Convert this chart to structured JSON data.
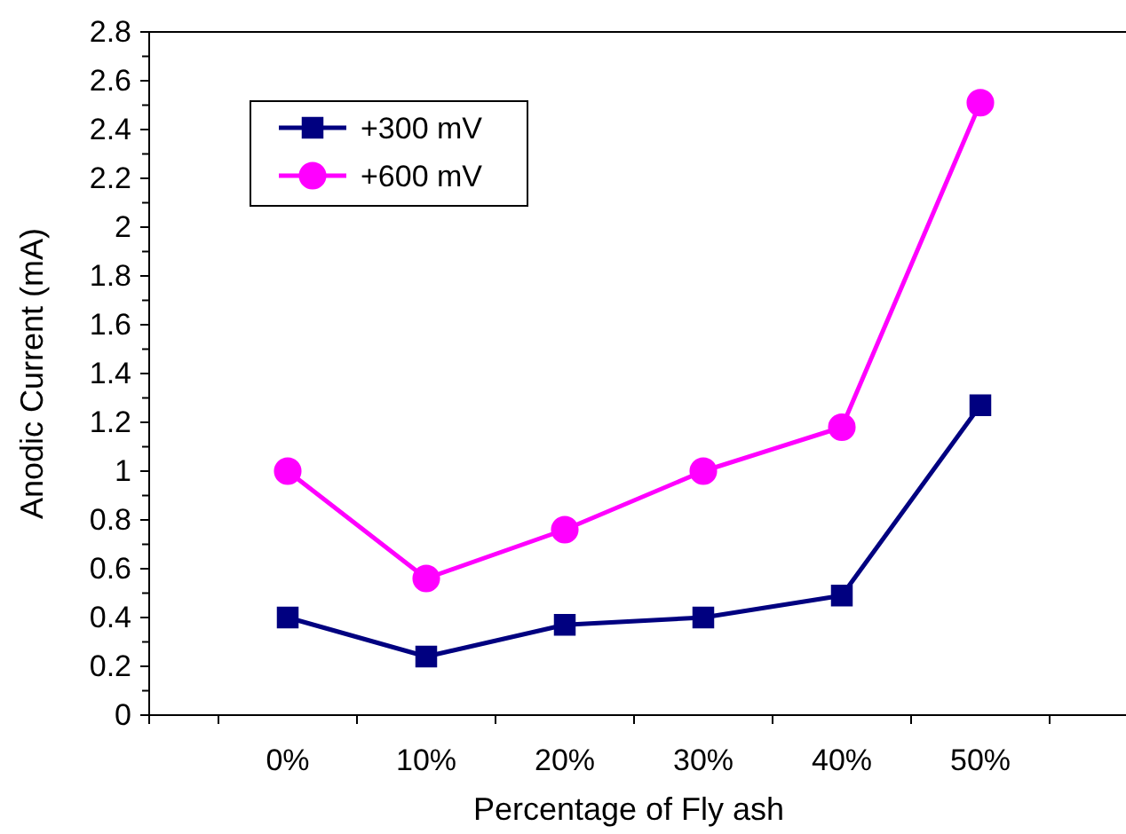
{
  "chart_data": {
    "type": "line",
    "xlabel": "Percentage of Fly ash",
    "ylabel": "Anodic Current (mA)",
    "categories": [
      null,
      "0%",
      "10%",
      "20%",
      "30%",
      "40%",
      "50%",
      null
    ],
    "series": [
      {
        "name": "+300 mV",
        "color": "#000080",
        "marker": "square",
        "values": [
          null,
          0.4,
          0.24,
          0.37,
          0.4,
          0.49,
          1.27,
          null
        ]
      },
      {
        "name": "+600 mV",
        "color": "#ff00ff",
        "marker": "circle",
        "values": [
          null,
          1.0,
          0.56,
          0.76,
          1.0,
          1.18,
          2.51,
          null
        ]
      }
    ],
    "ylim": [
      0,
      2.8
    ],
    "yticks": [
      0,
      0.2,
      0.4,
      0.6,
      0.8,
      1,
      1.2,
      1.4,
      1.6,
      1.8,
      2,
      2.2,
      2.4,
      2.6,
      2.8
    ],
    "legend": "top left",
    "grid": false,
    "line_style": "solid"
  }
}
